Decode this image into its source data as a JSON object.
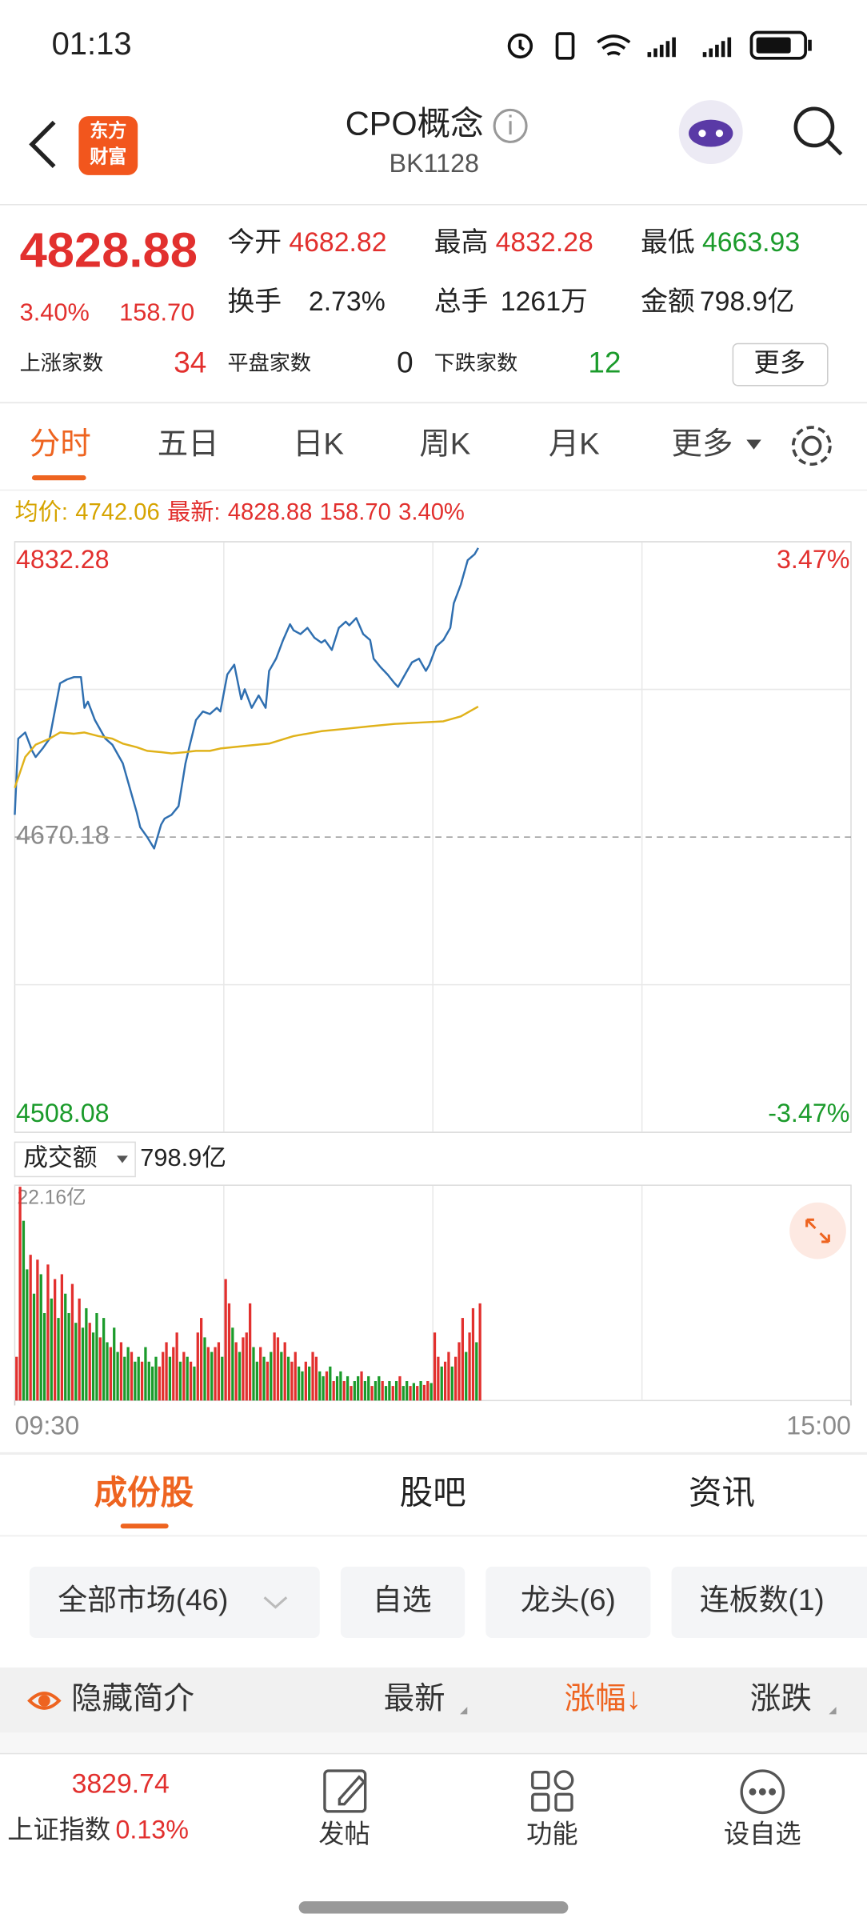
{
  "status_bar": {
    "time": "01:13"
  },
  "header": {
    "logo": [
      "东方",
      "财富"
    ],
    "title": "CPO概念",
    "code": "BK1128"
  },
  "quote": {
    "price": "4828.88",
    "change_pct": "3.40%",
    "change": "158.70",
    "fields": [
      {
        "label": "今开",
        "value": "4682.82"
      },
      {
        "label": "最高",
        "value": "4832.28"
      },
      {
        "label": "最低",
        "value": "4663.93"
      },
      {
        "label": "换手",
        "value": "2.73%"
      },
      {
        "label": "总手",
        "value": "1261万"
      },
      {
        "label": "金额",
        "value": "798.9亿"
      }
    ],
    "breadth": [
      {
        "label": "上涨家数",
        "value": "34"
      },
      {
        "label": "平盘家数",
        "value": "0"
      },
      {
        "label": "下跌家数",
        "value": "12"
      }
    ],
    "more_button": "更多"
  },
  "tabs": [
    "分时",
    "五日",
    "日K",
    "周K",
    "月K",
    "更多"
  ],
  "price_legend": {
    "avg_label": "均价:",
    "avg": "4742.06",
    "latest_label": "最新:",
    "latest": "4828.88",
    "change": "158.70",
    "change_pct": "3.40%"
  },
  "chart_data": [
    {
      "type": "line",
      "xlim": [
        0,
        240
      ],
      "ylim": [
        4508.08,
        4832.28
      ],
      "yticks": [
        4832.28,
        4670.18,
        4508.08
      ],
      "y2lim": [
        -3.47,
        3.47
      ],
      "y2ticks": [
        {
          "value": 3.47,
          "label": "3.47%"
        },
        {
          "value": -3.47,
          "label": "-3.47%"
        }
      ],
      "series": [
        {
          "color": "#2f6fb0",
          "x": [
            0,
            1,
            3,
            5,
            6,
            8,
            10,
            12,
            13,
            15,
            17,
            19,
            20,
            21,
            23,
            24,
            26,
            28,
            29,
            31,
            33,
            35,
            36,
            38,
            40,
            42,
            43,
            45,
            47,
            49,
            50,
            52,
            54,
            56,
            58,
            59,
            61,
            63,
            65,
            66,
            68,
            70,
            72,
            73,
            75,
            77,
            79,
            80,
            82,
            84,
            86,
            88,
            89,
            91,
            93,
            95,
            96,
            98,
            100,
            102,
            103,
            105,
            107,
            109,
            110,
            112,
            114,
            116,
            118,
            119,
            121,
            123,
            125,
            126,
            128,
            130,
            132,
            133
          ],
          "values": [
            4682.4,
            4724.2,
            4727.6,
            4717.5,
            4714.1,
            4718.8,
            4724.2,
            4744.5,
            4754.6,
            4756.7,
            4758.0,
            4758.0,
            4741.1,
            4744.5,
            4734.4,
            4731.0,
            4724.2,
            4720.9,
            4717.5,
            4710.7,
            4697.2,
            4683.7,
            4675.6,
            4670.2,
            4663.9,
            4677.0,
            4680.3,
            4682.4,
            4687.1,
            4710.7,
            4718.8,
            4734.4,
            4739.1,
            4737.7,
            4741.1,
            4739.1,
            4759.4,
            4764.8,
            4745.8,
            4751.3,
            4741.1,
            4747.9,
            4741.1,
            4761.4,
            4768.1,
            4778.3,
            4787.0,
            4783.7,
            4781.6,
            4785.0,
            4779.6,
            4776.9,
            4778.3,
            4772.9,
            4785.0,
            4788.4,
            4786.4,
            4790.4,
            4781.6,
            4778.3,
            4768.1,
            4763.4,
            4759.4,
            4754.6,
            4752.6,
            4759.4,
            4766.1,
            4768.1,
            4761.4,
            4764.8,
            4774.9,
            4778.3,
            4785.0,
            4798.5,
            4808.7,
            4822.2,
            4825.5,
            4828.88
          ]
        },
        {
          "color": "#e0b21a",
          "x": [
            0,
            3,
            6,
            10,
            13,
            17,
            20,
            24,
            28,
            31,
            35,
            38,
            42,
            45,
            49,
            52,
            56,
            59,
            66,
            73,
            80,
            88,
            95,
            102,
            109,
            116,
            123,
            128,
            133
          ],
          "values": [
            4697.2,
            4714.1,
            4720.9,
            4724.2,
            4727.6,
            4726.9,
            4727.6,
            4725.6,
            4724.2,
            4721.5,
            4719.5,
            4717.5,
            4716.8,
            4716.1,
            4716.8,
            4717.5,
            4717.5,
            4718.8,
            4720.2,
            4721.5,
            4725.6,
            4728.3,
            4729.6,
            4731.0,
            4732.3,
            4733.0,
            4733.7,
            4736.4,
            4741.8
          ]
        }
      ]
    },
    {
      "type": "bar",
      "title": "成交额",
      "subtitle": "798.9亿",
      "xlim": [
        0,
        240
      ],
      "xticks": [
        {
          "value": 0,
          "label": "09:30"
        },
        {
          "value": 240,
          "label": "15:00"
        }
      ],
      "ylim": [
        0,
        22.16
      ],
      "yticks": [
        {
          "value": 22.16,
          "label": "22.16亿"
        }
      ],
      "x": [
        0,
        1,
        2,
        3,
        4,
        5,
        6,
        7,
        8,
        9,
        10,
        11,
        12,
        13,
        14,
        15,
        16,
        17,
        18,
        19,
        20,
        21,
        22,
        23,
        24,
        25,
        26,
        27,
        28,
        29,
        30,
        31,
        32,
        33,
        34,
        35,
        36,
        37,
        38,
        39,
        40,
        41,
        42,
        43,
        44,
        45,
        46,
        47,
        48,
        49,
        50,
        51,
        52,
        53,
        54,
        55,
        56,
        57,
        58,
        59,
        60,
        61,
        62,
        63,
        64,
        65,
        66,
        67,
        68,
        69,
        70,
        71,
        72,
        73,
        74,
        75,
        76,
        77,
        78,
        79,
        80,
        81,
        82,
        83,
        84,
        85,
        86,
        87,
        88,
        89,
        90,
        91,
        92,
        93,
        94,
        95,
        96,
        97,
        98,
        99,
        100,
        101,
        102,
        103,
        104,
        105,
        106,
        107,
        108,
        109,
        110,
        111,
        112,
        113,
        114,
        115,
        116,
        117,
        118,
        119,
        120,
        121,
        122,
        123,
        124,
        125,
        126,
        127,
        128,
        129,
        130,
        131,
        132,
        133
      ],
      "values": [
        4.5,
        22.0,
        18.5,
        13.5,
        15.0,
        11.0,
        14.5,
        13.0,
        9.0,
        14.0,
        10.5,
        12.5,
        8.5,
        13.0,
        11.0,
        9.0,
        12.0,
        8.0,
        10.5,
        7.5,
        9.5,
        8.0,
        7.0,
        9.0,
        6.5,
        8.5,
        6.0,
        5.5,
        7.5,
        5.0,
        6.0,
        4.5,
        5.5,
        5.0,
        4.0,
        4.5,
        4.0,
        5.5,
        4.0,
        3.5,
        4.5,
        3.5,
        5.0,
        6.0,
        4.5,
        5.5,
        7.0,
        4.0,
        5.0,
        4.5,
        4.0,
        3.5,
        7.0,
        8.5,
        6.5,
        5.5,
        5.0,
        5.5,
        6.0,
        4.5,
        12.5,
        10.0,
        7.5,
        6.0,
        5.0,
        6.5,
        7.0,
        10.0,
        5.5,
        4.0,
        5.5,
        4.5,
        4.0,
        5.0,
        7.0,
        6.5,
        5.0,
        6.0,
        4.5,
        4.0,
        5.0,
        3.5,
        3.0,
        4.0,
        3.5,
        5.0,
        4.5,
        3.0,
        2.5,
        3.0,
        3.5,
        2.0,
        2.5,
        3.0,
        2.0,
        2.5,
        1.5,
        2.0,
        2.5,
        3.0,
        2.0,
        2.5,
        1.5,
        2.0,
        2.5,
        2.0,
        1.5,
        2.0,
        1.5,
        2.0,
        2.5,
        1.5,
        2.0,
        1.5,
        1.8,
        1.5,
        2.0,
        1.6,
        2.0,
        1.8,
        7.0,
        4.5,
        3.5,
        4.0,
        5.0,
        3.5,
        4.5,
        6.0,
        8.5,
        5.0,
        7.0,
        9.5,
        6.0,
        10.0
      ],
      "colors": [
        "#e2302e",
        "#e2302e",
        "#1b9b2b",
        "#1b9b2b",
        "#e2302e",
        "#1b9b2b",
        "#e2302e",
        "#1b9b2b",
        "#1b9b2b",
        "#e2302e",
        "#1b9b2b",
        "#e2302e",
        "#1b9b2b",
        "#e2302e",
        "#1b9b2b",
        "#1b9b2b",
        "#e2302e",
        "#1b9b2b",
        "#e2302e",
        "#1b9b2b",
        "#1b9b2b",
        "#e2302e",
        "#1b9b2b",
        "#1b9b2b",
        "#e2302e",
        "#1b9b2b",
        "#1b9b2b",
        "#e2302e",
        "#1b9b2b",
        "#1b9b2b",
        "#e2302e",
        "#1b9b2b",
        "#1b9b2b",
        "#e2302e",
        "#1b9b2b",
        "#1b9b2b",
        "#e2302e",
        "#1b9b2b",
        "#1b9b2b",
        "#1b9b2b",
        "#1b9b2b",
        "#e2302e",
        "#e2302e",
        "#e2302e",
        "#1b9b2b",
        "#e2302e",
        "#e2302e",
        "#1b9b2b",
        "#e2302e",
        "#1b9b2b",
        "#e2302e",
        "#1b9b2b",
        "#e2302e",
        "#e2302e",
        "#1b9b2b",
        "#e2302e",
        "#1b9b2b",
        "#e2302e",
        "#e2302e",
        "#1b9b2b",
        "#e2302e",
        "#e2302e",
        "#1b9b2b",
        "#e2302e",
        "#1b9b2b",
        "#e2302e",
        "#e2302e",
        "#e2302e",
        "#1b9b2b",
        "#1b9b2b",
        "#e2302e",
        "#1b9b2b",
        "#e2302e",
        "#1b9b2b",
        "#e2302e",
        "#e2302e",
        "#1b9b2b",
        "#e2302e",
        "#1b9b2b",
        "#e2302e",
        "#e2302e",
        "#1b9b2b",
        "#1b9b2b",
        "#e2302e",
        "#1b9b2b",
        "#e2302e",
        "#e2302e",
        "#1b9b2b",
        "#1b9b2b",
        "#e2302e",
        "#1b9b2b",
        "#e2302e",
        "#1b9b2b",
        "#1b9b2b",
        "#e2302e",
        "#1b9b2b",
        "#e2302e",
        "#1b9b2b",
        "#1b9b2b",
        "#e2302e",
        "#1b9b2b",
        "#1b9b2b",
        "#e2302e",
        "#1b9b2b",
        "#1b9b2b",
        "#e2302e",
        "#1b9b2b",
        "#1b9b2b",
        "#e2302e",
        "#1b9b2b",
        "#e2302e",
        "#1b9b2b",
        "#1b9b2b",
        "#e2302e",
        "#1b9b2b",
        "#e2302e",
        "#1b9b2b",
        "#e2302e",
        "#e2302e",
        "#1b9b2b",
        "#e2302e",
        "#e2302e",
        "#1b9b2b",
        "#e2302e",
        "#e2302e",
        "#1b9b2b",
        "#e2302e",
        "#e2302e",
        "#e2302e",
        "#1b9b2b",
        "#e2302e",
        "#e2302e",
        "#1b9b2b",
        "#e2302e"
      ]
    }
  ],
  "section_tabs": [
    "成份股",
    "股吧",
    "资讯"
  ],
  "filters": [
    "全部市场(46)",
    "自选",
    "龙头(6)",
    "连板数(1)"
  ],
  "table_header": [
    "隐藏简介",
    "最新",
    "涨幅↓",
    "涨跌"
  ],
  "bottom_bar": {
    "index_value": "3829.74",
    "index_name": "上证指数",
    "index_pct": "0.13%",
    "nav": [
      "发帖",
      "功能",
      "设自选"
    ]
  }
}
